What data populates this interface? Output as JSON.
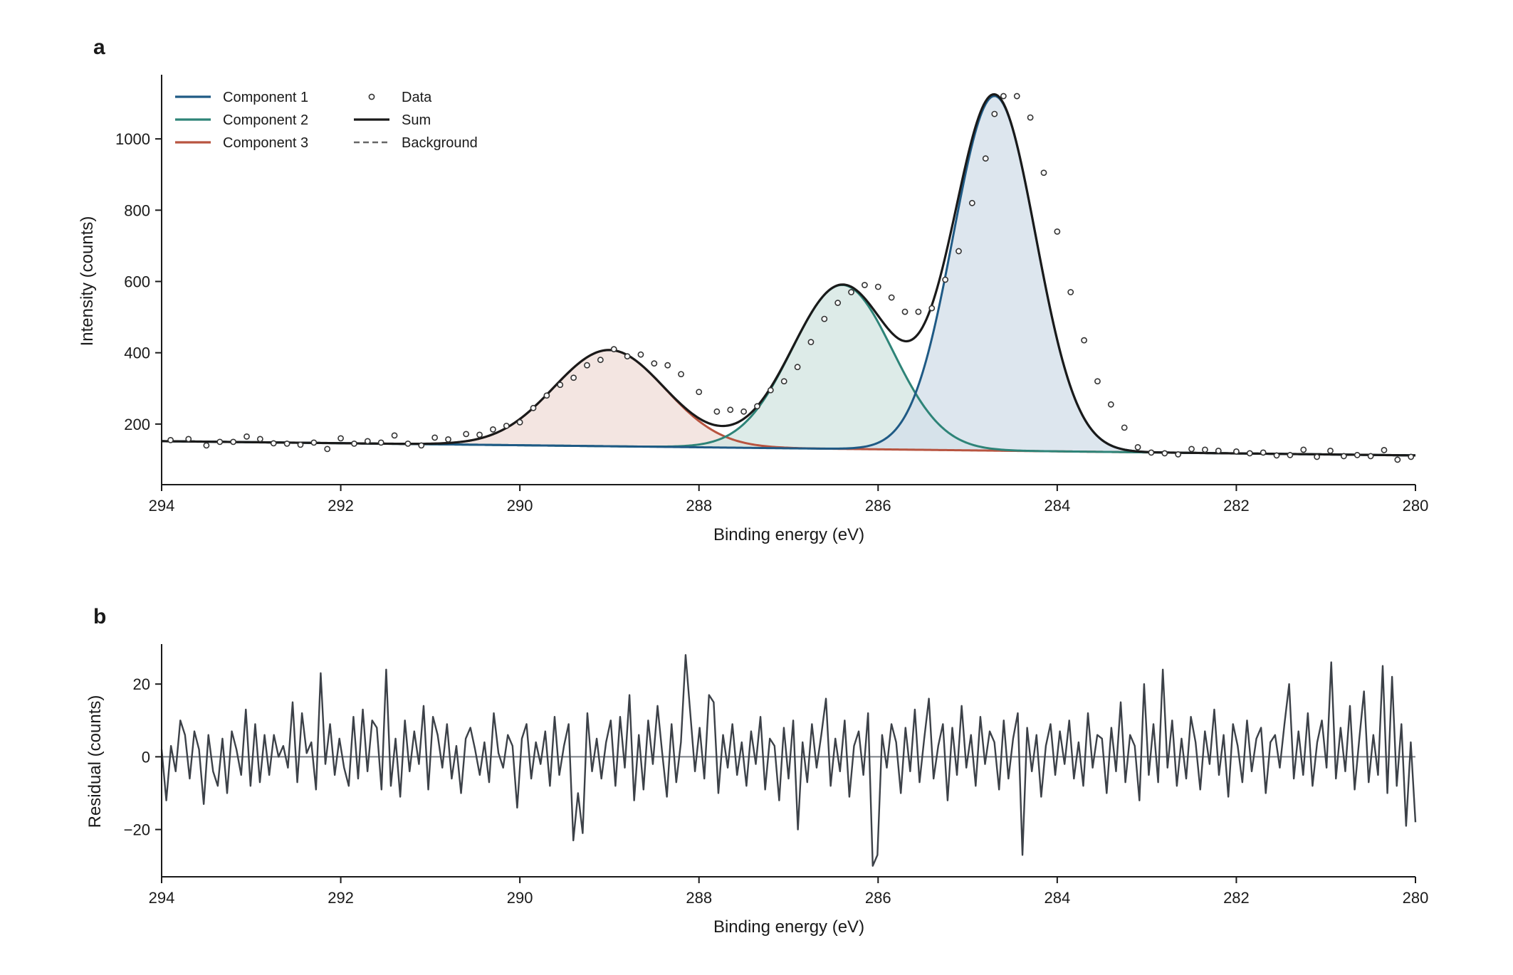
{
  "chart_data": [
    {
      "type": "line",
      "panel_label": "a",
      "xlabel": "Binding energy (eV)",
      "ylabel": "Intensity (counts)",
      "xlim": [
        294,
        280
      ],
      "ylim": [
        30,
        1180
      ],
      "x_ticks": [
        294,
        292,
        290,
        288,
        286,
        284,
        282,
        280
      ],
      "y_ticks": [
        200,
        400,
        600,
        800,
        1000
      ],
      "x_reversed": true,
      "grid": false,
      "legend_position": "top-left",
      "background": {
        "type": "linear",
        "start": [
          294,
          152
        ],
        "end": [
          280,
          112
        ]
      },
      "components": [
        {
          "name": "Component 1",
          "center": 284.7,
          "amplitude": 995,
          "sigma": 0.46,
          "color": "#1f5a85",
          "fill": "#d4e0ea"
        },
        {
          "name": "Component 2",
          "center": 286.4,
          "amplitude": 460,
          "sigma": 0.56,
          "color": "#2e8478",
          "fill": "#d5e6e2"
        },
        {
          "name": "Component 3",
          "center": 289.0,
          "amplitude": 270,
          "sigma": 0.62,
          "color": "#b85440",
          "fill": "#f0deda"
        }
      ],
      "legend": [
        {
          "label": "Component 1",
          "style": "line",
          "color": "#1f5a85"
        },
        {
          "label": "Component 2",
          "style": "line",
          "color": "#2e8478"
        },
        {
          "label": "Component 3",
          "style": "line",
          "color": "#b85440"
        },
        {
          "label": "Data",
          "style": "marker",
          "color": "#333333"
        },
        {
          "label": "Sum",
          "style": "line",
          "color": "#1a1a1a"
        },
        {
          "label": "Background",
          "style": "dashed",
          "color": "#666666"
        }
      ],
      "data_points": {
        "x": [
          293.9,
          293.7,
          293.5,
          293.35,
          293.2,
          293.05,
          292.9,
          292.75,
          292.6,
          292.45,
          292.3,
          292.15,
          292.0,
          291.85,
          291.7,
          291.55,
          291.4,
          291.25,
          291.1,
          290.95,
          290.8,
          290.6,
          290.45,
          290.3,
          290.15,
          290.0,
          289.85,
          289.7,
          289.55,
          289.4,
          289.25,
          289.1,
          288.95,
          288.8,
          288.65,
          288.5,
          288.35,
          288.2,
          288.0,
          287.8,
          287.65,
          287.5,
          287.35,
          287.2,
          287.05,
          286.9,
          286.75,
          286.6,
          286.45,
          286.3,
          286.15,
          286.0,
          285.85,
          285.7,
          285.55,
          285.4,
          285.25,
          285.1,
          284.95,
          284.8,
          284.7,
          284.6,
          284.45,
          284.3,
          284.15,
          284.0,
          283.85,
          283.7,
          283.55,
          283.4,
          283.25,
          283.1,
          282.95,
          282.8,
          282.65,
          282.5,
          282.35,
          282.2,
          282.0,
          281.85,
          281.7,
          281.55,
          281.4,
          281.25,
          281.1,
          280.95,
          280.8,
          280.65,
          280.5,
          280.35,
          280.2,
          280.05
        ],
        "y": [
          155,
          158,
          140,
          150,
          150,
          165,
          158,
          146,
          145,
          142,
          148,
          130,
          160,
          145,
          152,
          148,
          168,
          145,
          140,
          162,
          157,
          172,
          170,
          185,
          195,
          205,
          245,
          280,
          310,
          330,
          365,
          380,
          410,
          390,
          395,
          370,
          365,
          340,
          290,
          235,
          240,
          235,
          250,
          295,
          320,
          360,
          430,
          495,
          540,
          570,
          590,
          585,
          555,
          515,
          515,
          525,
          605,
          685,
          820,
          945,
          1070,
          1120,
          1120,
          1060,
          905,
          740,
          570,
          435,
          320,
          255,
          190,
          135,
          120,
          118,
          115,
          130,
          128,
          125,
          123,
          118,
          120,
          112,
          113,
          128,
          108,
          125,
          110,
          113,
          110,
          127,
          100,
          108
        ]
      }
    },
    {
      "type": "line",
      "panel_label": "b",
      "xlabel": "Binding energy (eV)",
      "ylabel": "Residual (counts)",
      "xlim": [
        294,
        280
      ],
      "ylim": [
        -33,
        31
      ],
      "x_ticks": [
        294,
        292,
        290,
        288,
        286,
        284,
        282,
        280
      ],
      "y_ticks": [
        -20,
        0,
        20
      ],
      "x_reversed": true,
      "grid": false,
      "zero_line": true,
      "series": [
        {
          "x_start": 294,
          "x_end": 280,
          "color": "#3c4148",
          "values": [
            2,
            -12,
            3,
            -4,
            10,
            6,
            -6,
            7,
            2,
            -13,
            6,
            -4,
            -8,
            5,
            -10,
            7,
            2,
            -5,
            13,
            -8,
            9,
            -7,
            6,
            -5,
            6,
            0,
            3,
            -3,
            15,
            -7,
            12,
            1,
            4,
            -9,
            23,
            -2,
            9,
            -5,
            5,
            -3,
            -8,
            11,
            -6,
            13,
            -4,
            10,
            8,
            -9,
            24,
            -8,
            5,
            -11,
            10,
            -4,
            7,
            -2,
            14,
            -9,
            11,
            6,
            -3,
            9,
            -6,
            3,
            -10,
            5,
            8,
            2,
            -5,
            4,
            -7,
            12,
            1,
            -3,
            6,
            3,
            -14,
            5,
            9,
            -6,
            4,
            -2,
            7,
            -8,
            11,
            -5,
            3,
            9,
            -23,
            -10,
            -21,
            12,
            -4,
            5,
            -6,
            4,
            10,
            -8,
            11,
            -3,
            17,
            -12,
            6,
            -9,
            10,
            -2,
            14,
            1,
            -11,
            9,
            -7,
            4,
            28,
            12,
            -4,
            8,
            -6,
            17,
            15,
            -10,
            6,
            -3,
            9,
            -5,
            4,
            -8,
            7,
            -2,
            11,
            -9,
            5,
            3,
            -12,
            8,
            -6,
            10,
            -20,
            4,
            -7,
            9,
            -3,
            6,
            16,
            -8,
            5,
            -4,
            10,
            -11,
            3,
            7,
            -5,
            12,
            -30,
            -27,
            6,
            -3,
            9,
            4,
            -10,
            8,
            -4,
            13,
            -7,
            5,
            16,
            -6,
            3,
            9,
            -12,
            8,
            -5,
            14,
            -3,
            6,
            -8,
            11,
            -2,
            7,
            4,
            -9,
            10,
            -6,
            5,
            12,
            -27,
            8,
            -4,
            6,
            -11,
            3,
            9,
            -5,
            7,
            -2,
            10,
            -6,
            4,
            -8,
            12,
            -3,
            6,
            5,
            -10,
            8,
            -4,
            15,
            -7,
            6,
            3,
            -12,
            20,
            -5,
            9,
            -7,
            24,
            -3,
            10,
            -8,
            5,
            -6,
            11,
            4,
            -9,
            7,
            -2,
            13,
            -5,
            6,
            -11,
            9,
            3,
            -7,
            10,
            -4,
            5,
            8,
            -10,
            4,
            6,
            -3,
            9,
            20,
            -6,
            7,
            -5,
            12,
            -8,
            4,
            10,
            -3,
            26,
            -6,
            8,
            -4,
            14,
            -9,
            5,
            18,
            -7,
            6,
            -5,
            25,
            -10,
            22,
            -8,
            9,
            -19,
            4,
            -18
          ]
        }
      ]
    }
  ]
}
